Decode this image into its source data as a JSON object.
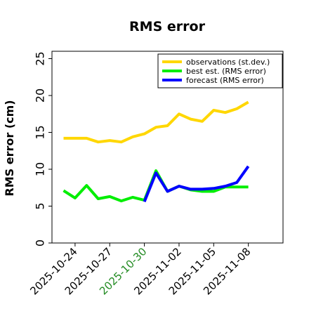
{
  "chart_data": {
    "type": "line",
    "title": "RMS error",
    "xlabel": "",
    "ylabel": "RMS error (cm)",
    "ylim": [
      0,
      26
    ],
    "yticks": [
      "0",
      "5",
      "10",
      "15",
      "20",
      "25"
    ],
    "xlim": [
      -1,
      19
    ],
    "xticks": [
      {
        "label": "2025-10-24",
        "x": 1,
        "color": "#000000"
      },
      {
        "label": "2025-10-27",
        "x": 4,
        "color": "#000000"
      },
      {
        "label": "2025-10-30",
        "x": 7,
        "color": "#228b22"
      },
      {
        "label": "2025-11-02",
        "x": 10,
        "color": "#000000"
      },
      {
        "label": "2025-11-05",
        "x": 13,
        "color": "#000000"
      },
      {
        "label": "2025-11-08",
        "x": 16,
        "color": "#000000"
      }
    ],
    "grid": false,
    "legend_position": "top-right",
    "series": [
      {
        "name": "observations (st.dev.)",
        "color": "#ffd700",
        "x": [
          0,
          1,
          2,
          3,
          4,
          5,
          6,
          7,
          8,
          9,
          10,
          11,
          12,
          13,
          14,
          15,
          16
        ],
        "y": [
          14.2,
          14.2,
          14.2,
          13.7,
          13.9,
          13.7,
          14.4,
          14.8,
          15.7,
          15.9,
          17.5,
          16.8,
          16.5,
          18.0,
          17.7,
          18.2,
          19.1
        ]
      },
      {
        "name": "best est. (RMS error)",
        "color": "#00ee00",
        "x": [
          0,
          1,
          2,
          3,
          4,
          5,
          6,
          7,
          8,
          9,
          10,
          11,
          12,
          13,
          14,
          15,
          16
        ],
        "y": [
          7.1,
          6.1,
          7.8,
          6.0,
          6.3,
          5.7,
          6.2,
          5.8,
          9.8,
          7.0,
          7.7,
          7.2,
          7.0,
          7.0,
          7.6,
          7.6,
          7.6
        ]
      },
      {
        "name": "forecast (RMS error)",
        "color": "#0000ff",
        "x": [
          7,
          8,
          9,
          10,
          11,
          12,
          13,
          14,
          15,
          16
        ],
        "y": [
          5.6,
          9.5,
          7.0,
          7.7,
          7.3,
          7.3,
          7.4,
          7.7,
          8.2,
          10.4
        ]
      }
    ]
  }
}
